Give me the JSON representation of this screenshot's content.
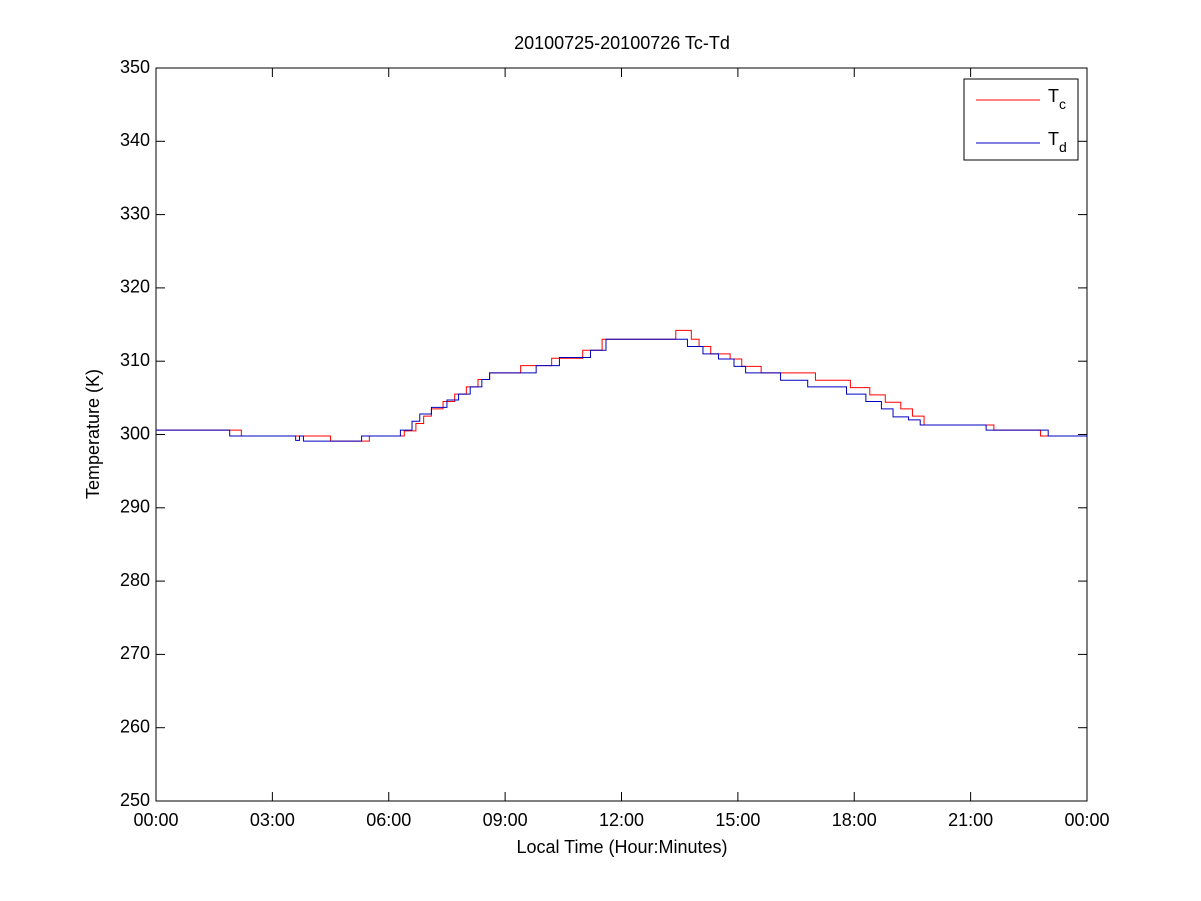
{
  "chart_data": {
    "type": "line",
    "title": "20100725-20100726 Tc-Td",
    "xlabel": "Local Time (Hour:Minutes)",
    "ylabel": "Temperature (K)",
    "xlim": [
      0,
      24
    ],
    "xticks": [
      {
        "value": 0,
        "label": "00:00"
      },
      {
        "value": 3,
        "label": "03:00"
      },
      {
        "value": 6,
        "label": "06:00"
      },
      {
        "value": 9,
        "label": "09:00"
      },
      {
        "value": 12,
        "label": "12:00"
      },
      {
        "value": 15,
        "label": "15:00"
      },
      {
        "value": 18,
        "label": "18:00"
      },
      {
        "value": 21,
        "label": "21:00"
      },
      {
        "value": 24,
        "label": "00:00"
      }
    ],
    "ylim": [
      250,
      350
    ],
    "yticks": [
      250,
      260,
      270,
      280,
      290,
      300,
      310,
      320,
      330,
      340,
      350
    ],
    "legend": "upper right",
    "series": [
      {
        "name": "Tc",
        "color": "#ff0000",
        "x": [
          0,
          2.2,
          2.2,
          4.5,
          4.5,
          5.5,
          5.5,
          6.4,
          6.4,
          6.7,
          6.7,
          6.9,
          6.9,
          7.1,
          7.1,
          7.4,
          7.4,
          7.7,
          7.7,
          8.0,
          8.0,
          8.3,
          8.3,
          8.6,
          8.6,
          9.4,
          9.4,
          10.2,
          10.2,
          11.0,
          11.0,
          11.5,
          11.5,
          13.4,
          13.4,
          13.8,
          13.8,
          14.0,
          14.0,
          14.3,
          14.3,
          14.8,
          14.8,
          15.1,
          15.1,
          15.6,
          15.6,
          17.0,
          17.0,
          17.9,
          17.9,
          18.4,
          18.4,
          18.8,
          18.8,
          19.2,
          19.2,
          19.5,
          19.5,
          19.8,
          19.8,
          21.6,
          21.6,
          22.8,
          22.8,
          24
        ],
        "values": [
          300.6,
          300.6,
          299.8,
          299.8,
          299.1,
          299.1,
          299.8,
          299.8,
          300.5,
          300.5,
          301.5,
          301.5,
          302.5,
          302.5,
          303.5,
          303.5,
          304.5,
          304.5,
          305.5,
          305.5,
          306.5,
          306.5,
          307.5,
          307.5,
          308.4,
          308.4,
          309.4,
          309.4,
          310.4,
          310.4,
          311.5,
          311.5,
          313,
          313,
          314.2,
          314.2,
          313,
          313,
          312,
          312,
          311,
          311,
          310.3,
          310.3,
          309.3,
          309.3,
          308.4,
          308.4,
          307.4,
          307.4,
          306.4,
          306.4,
          305.4,
          305.4,
          304.4,
          304.4,
          303.5,
          303.5,
          302.5,
          302.5,
          301.3,
          301.3,
          300.6,
          300.6,
          299.8,
          299.8
        ]
      },
      {
        "name": "Td",
        "color": "#0000c0",
        "x": [
          0,
          1.9,
          1.9,
          3.6,
          3.6,
          3.7,
          3.7,
          3.8,
          3.8,
          5.3,
          5.3,
          6.3,
          6.3,
          6.6,
          6.6,
          6.8,
          6.8,
          7.1,
          7.1,
          7.5,
          7.5,
          7.8,
          7.8,
          8.1,
          8.1,
          8.4,
          8.4,
          8.6,
          8.6,
          9.8,
          9.8,
          10.4,
          10.4,
          11.2,
          11.2,
          11.6,
          11.6,
          13.7,
          13.7,
          14.1,
          14.1,
          14.5,
          14.5,
          14.9,
          14.9,
          15.2,
          15.2,
          16.1,
          16.1,
          16.8,
          16.8,
          17.8,
          17.8,
          18.3,
          18.3,
          18.7,
          18.7,
          19.0,
          19.0,
          19.4,
          19.4,
          19.7,
          19.7,
          21.4,
          21.4,
          23.0,
          23.0,
          24
        ],
        "values": [
          300.6,
          300.6,
          299.8,
          299.8,
          299.2,
          299.2,
          299.8,
          299.8,
          299.1,
          299.1,
          299.8,
          299.8,
          300.6,
          300.6,
          301.8,
          301.8,
          302.8,
          302.8,
          303.7,
          303.7,
          304.7,
          304.7,
          305.5,
          305.5,
          306.5,
          306.5,
          307.5,
          307.5,
          308.4,
          308.4,
          309.4,
          309.4,
          310.5,
          310.5,
          311.5,
          311.5,
          313,
          313,
          312,
          312,
          311,
          311,
          310.3,
          310.3,
          309.3,
          309.3,
          308.4,
          308.4,
          307.4,
          307.4,
          306.5,
          306.5,
          305.5,
          305.5,
          304.5,
          304.5,
          303.5,
          303.5,
          302.4,
          302.4,
          302,
          302,
          301.3,
          301.3,
          300.6,
          300.6,
          299.8,
          299.8
        ]
      }
    ]
  }
}
